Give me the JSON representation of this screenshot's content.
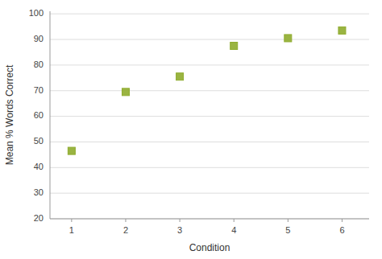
{
  "chart_data": {
    "type": "scatter",
    "x": [
      1,
      2,
      3,
      4,
      5,
      6
    ],
    "values": [
      46.5,
      69.5,
      75.5,
      87.5,
      90.5,
      93.5
    ],
    "color": "#8fac2e",
    "marker": "square",
    "xlabel": "Condition",
    "ylabel": "Mean % Words Correct",
    "xlim": [
      0.6,
      6.5
    ],
    "ylim": [
      20,
      101
    ],
    "xticks": [
      1,
      2,
      3,
      4,
      5,
      6
    ],
    "yticks": [
      20,
      30,
      40,
      50,
      60,
      70,
      80,
      90,
      100
    ],
    "grid": true
  }
}
